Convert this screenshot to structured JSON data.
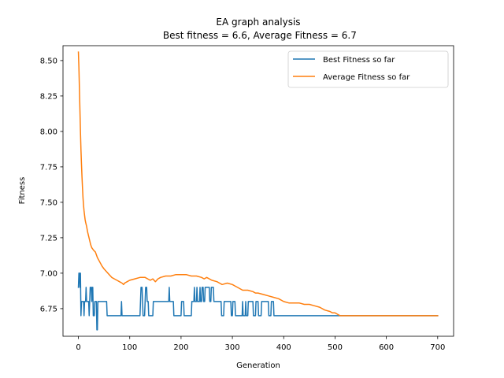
{
  "chart_data": {
    "type": "line",
    "title": "EA graph analysis",
    "subtitle": " Best fitness = 6.6, Average Fitness = 6.7",
    "xlabel": "Generation",
    "ylabel": "Fitness",
    "xlim": [
      -30,
      731
    ],
    "ylim": [
      6.555,
      8.605
    ],
    "xticks": [
      0,
      100,
      200,
      300,
      400,
      500,
      600,
      700
    ],
    "xtick_labels": [
      "0",
      "100",
      "200",
      "300",
      "400",
      "500",
      "600",
      "700"
    ],
    "yticks": [
      6.75,
      7.0,
      7.25,
      7.5,
      7.75,
      8.0,
      8.25,
      8.5
    ],
    "ytick_labels": [
      "6.75",
      "7.00",
      "7.25",
      "7.50",
      "7.75",
      "8.00",
      "8.25",
      "8.50"
    ],
    "grid": false,
    "legend_position": "top-right",
    "series": [
      {
        "name": "Best Fitness so far",
        "color": "#1f77b4",
        "points": [
          [
            0,
            6.9
          ],
          [
            1,
            7.0
          ],
          [
            2,
            7.0
          ],
          [
            3,
            6.9
          ],
          [
            4,
            7.0
          ],
          [
            5,
            6.7
          ],
          [
            6,
            6.8
          ],
          [
            10,
            6.8
          ],
          [
            11,
            6.7
          ],
          [
            12,
            6.8
          ],
          [
            14,
            6.8
          ],
          [
            15,
            6.9
          ],
          [
            16,
            6.8
          ],
          [
            20,
            6.8
          ],
          [
            21,
            6.7
          ],
          [
            22,
            6.8
          ],
          [
            23,
            6.9
          ],
          [
            25,
            6.9
          ],
          [
            26,
            6.8
          ],
          [
            27,
            6.9
          ],
          [
            28,
            6.9
          ],
          [
            29,
            6.7
          ],
          [
            31,
            6.7
          ],
          [
            32,
            6.8
          ],
          [
            35,
            6.8
          ],
          [
            36,
            6.6
          ],
          [
            37,
            6.6
          ],
          [
            38,
            6.8
          ],
          [
            55,
            6.8
          ],
          [
            56,
            6.7
          ],
          [
            83,
            6.7
          ],
          [
            84,
            6.8
          ],
          [
            85,
            6.7
          ],
          [
            120,
            6.7
          ],
          [
            121,
            6.8
          ],
          [
            122,
            6.9
          ],
          [
            124,
            6.9
          ],
          [
            125,
            6.8
          ],
          [
            126,
            6.7
          ],
          [
            129,
            6.7
          ],
          [
            130,
            6.8
          ],
          [
            131,
            6.9
          ],
          [
            133,
            6.9
          ],
          [
            134,
            6.8
          ],
          [
            136,
            6.8
          ],
          [
            137,
            6.7
          ],
          [
            145,
            6.7
          ],
          [
            146,
            6.8
          ],
          [
            176,
            6.8
          ],
          [
            177,
            6.9
          ],
          [
            178,
            6.8
          ],
          [
            185,
            6.8
          ],
          [
            186,
            6.7
          ],
          [
            200,
            6.7
          ],
          [
            201,
            6.8
          ],
          [
            205,
            6.8
          ],
          [
            206,
            6.7
          ],
          [
            220,
            6.7
          ],
          [
            221,
            6.8
          ],
          [
            225,
            6.8
          ],
          [
            226,
            6.9
          ],
          [
            227,
            6.8
          ],
          [
            230,
            6.8
          ],
          [
            231,
            6.9
          ],
          [
            232,
            6.8
          ],
          [
            236,
            6.8
          ],
          [
            237,
            6.9
          ],
          [
            238,
            6.8
          ],
          [
            240,
            6.8
          ],
          [
            241,
            6.9
          ],
          [
            243,
            6.9
          ],
          [
            244,
            6.8
          ],
          [
            246,
            6.8
          ],
          [
            247,
            6.9
          ],
          [
            255,
            6.9
          ],
          [
            256,
            6.8
          ],
          [
            258,
            6.8
          ],
          [
            259,
            6.9
          ],
          [
            263,
            6.9
          ],
          [
            264,
            6.8
          ],
          [
            278,
            6.8
          ],
          [
            279,
            6.7
          ],
          [
            283,
            6.7
          ],
          [
            284,
            6.8
          ],
          [
            297,
            6.8
          ],
          [
            298,
            6.7
          ],
          [
            300,
            6.7
          ],
          [
            301,
            6.8
          ],
          [
            305,
            6.8
          ],
          [
            306,
            6.7
          ],
          [
            319,
            6.7
          ],
          [
            320,
            6.8
          ],
          [
            321,
            6.7
          ],
          [
            325,
            6.7
          ],
          [
            326,
            6.8
          ],
          [
            327,
            6.7
          ],
          [
            330,
            6.7
          ],
          [
            331,
            6.8
          ],
          [
            340,
            6.8
          ],
          [
            341,
            6.7
          ],
          [
            345,
            6.7
          ],
          [
            346,
            6.8
          ],
          [
            350,
            6.8
          ],
          [
            351,
            6.7
          ],
          [
            356,
            6.7
          ],
          [
            357,
            6.8
          ],
          [
            370,
            6.8
          ],
          [
            371,
            6.7
          ],
          [
            375,
            6.7
          ],
          [
            376,
            6.8
          ],
          [
            380,
            6.8
          ],
          [
            381,
            6.7
          ],
          [
            700,
            6.7
          ]
        ]
      },
      {
        "name": "Average Fitness so far",
        "color": "#ff7f0e",
        "points": [
          [
            0,
            8.56
          ],
          [
            1,
            8.45
          ],
          [
            2,
            8.3
          ],
          [
            3,
            8.15
          ],
          [
            4,
            8.0
          ],
          [
            5,
            7.87
          ],
          [
            6,
            7.77
          ],
          [
            7,
            7.68
          ],
          [
            8,
            7.6
          ],
          [
            9,
            7.53
          ],
          [
            10,
            7.48
          ],
          [
            11,
            7.44
          ],
          [
            12,
            7.41
          ],
          [
            13,
            7.38
          ],
          [
            14,
            7.36
          ],
          [
            16,
            7.33
          ],
          [
            18,
            7.29
          ],
          [
            20,
            7.26
          ],
          [
            22,
            7.23
          ],
          [
            24,
            7.2
          ],
          [
            26,
            7.18
          ],
          [
            28,
            7.17
          ],
          [
            30,
            7.16
          ],
          [
            33,
            7.15
          ],
          [
            35,
            7.13
          ],
          [
            37,
            7.11
          ],
          [
            40,
            7.09
          ],
          [
            43,
            7.07
          ],
          [
            46,
            7.05
          ],
          [
            50,
            7.03
          ],
          [
            55,
            7.01
          ],
          [
            60,
            6.99
          ],
          [
            65,
            6.97
          ],
          [
            70,
            6.96
          ],
          [
            75,
            6.95
          ],
          [
            80,
            6.94
          ],
          [
            85,
            6.93
          ],
          [
            88,
            6.92
          ],
          [
            90,
            6.93
          ],
          [
            95,
            6.94
          ],
          [
            100,
            6.95
          ],
          [
            110,
            6.96
          ],
          [
            120,
            6.97
          ],
          [
            130,
            6.97
          ],
          [
            135,
            6.96
          ],
          [
            140,
            6.95
          ],
          [
            145,
            6.96
          ],
          [
            150,
            6.94
          ],
          [
            155,
            6.96
          ],
          [
            160,
            6.97
          ],
          [
            170,
            6.98
          ],
          [
            180,
            6.98
          ],
          [
            190,
            6.99
          ],
          [
            200,
            6.99
          ],
          [
            210,
            6.99
          ],
          [
            220,
            6.98
          ],
          [
            230,
            6.98
          ],
          [
            240,
            6.97
          ],
          [
            245,
            6.96
          ],
          [
            250,
            6.97
          ],
          [
            260,
            6.95
          ],
          [
            270,
            6.94
          ],
          [
            275,
            6.93
          ],
          [
            280,
            6.92
          ],
          [
            290,
            6.93
          ],
          [
            300,
            6.92
          ],
          [
            305,
            6.91
          ],
          [
            310,
            6.9
          ],
          [
            320,
            6.88
          ],
          [
            330,
            6.88
          ],
          [
            340,
            6.87
          ],
          [
            345,
            6.86
          ],
          [
            350,
            6.86
          ],
          [
            360,
            6.85
          ],
          [
            370,
            6.84
          ],
          [
            380,
            6.83
          ],
          [
            390,
            6.82
          ],
          [
            400,
            6.8
          ],
          [
            410,
            6.79
          ],
          [
            420,
            6.79
          ],
          [
            430,
            6.79
          ],
          [
            440,
            6.78
          ],
          [
            450,
            6.78
          ],
          [
            460,
            6.77
          ],
          [
            470,
            6.76
          ],
          [
            480,
            6.74
          ],
          [
            490,
            6.73
          ],
          [
            495,
            6.72
          ],
          [
            500,
            6.72
          ],
          [
            505,
            6.71
          ],
          [
            510,
            6.7
          ],
          [
            700,
            6.7
          ]
        ]
      }
    ]
  }
}
